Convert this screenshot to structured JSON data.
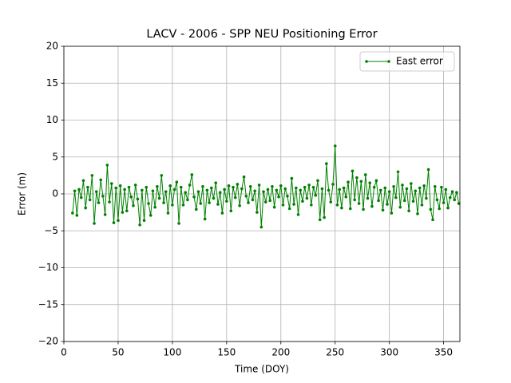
{
  "chart_data": {
    "type": "line",
    "title": "LACV - 2006 - SPP NEU Positioning Error",
    "xlabel": "Time (DOY)",
    "ylabel": "Error (m)",
    "xlim": [
      0,
      365
    ],
    "ylim": [
      -20,
      20
    ],
    "xticks": [
      0,
      50,
      100,
      150,
      200,
      250,
      300,
      350
    ],
    "yticks": [
      {
        "value": -20,
        "label": "−20"
      },
      {
        "value": -15,
        "label": "−15"
      },
      {
        "value": -10,
        "label": "−10"
      },
      {
        "value": -5,
        "label": "−5"
      },
      0,
      5,
      10,
      15,
      20
    ],
    "grid": true,
    "legend": "upper right",
    "x": [
      8,
      10,
      12,
      14,
      16,
      18,
      20,
      22,
      24,
      26,
      28,
      30,
      32,
      34,
      36,
      38,
      40,
      42,
      44,
      46,
      48,
      50,
      52,
      54,
      56,
      58,
      60,
      62,
      64,
      66,
      68,
      70,
      72,
      74,
      76,
      78,
      80,
      82,
      84,
      86,
      88,
      90,
      92,
      94,
      96,
      98,
      100,
      102,
      104,
      106,
      108,
      110,
      112,
      114,
      116,
      118,
      120,
      122,
      124,
      126,
      128,
      130,
      132,
      134,
      136,
      138,
      140,
      142,
      144,
      146,
      148,
      150,
      152,
      154,
      156,
      158,
      160,
      162,
      164,
      166,
      168,
      170,
      172,
      174,
      176,
      178,
      180,
      182,
      184,
      186,
      188,
      190,
      192,
      194,
      196,
      198,
      200,
      202,
      204,
      206,
      208,
      210,
      212,
      214,
      216,
      218,
      220,
      222,
      224,
      226,
      228,
      230,
      232,
      234,
      236,
      238,
      240,
      242,
      244,
      246,
      248,
      250,
      252,
      254,
      256,
      258,
      260,
      262,
      264,
      266,
      268,
      270,
      272,
      274,
      276,
      278,
      280,
      282,
      284,
      286,
      288,
      290,
      292,
      294,
      296,
      298,
      300,
      302,
      304,
      306,
      308,
      310,
      312,
      314,
      316,
      318,
      320,
      322,
      324,
      326,
      328,
      330,
      332,
      334,
      336,
      338,
      340,
      342,
      344,
      346,
      348,
      350,
      352,
      354,
      356,
      358,
      360,
      362,
      364
    ],
    "series": [
      {
        "name": "East error",
        "color": "#008000",
        "values": [
          -2.6,
          0.4,
          -2.9,
          0.6,
          -0.5,
          1.8,
          -1.9,
          0.9,
          -0.8,
          2.5,
          -4.0,
          0.3,
          -1.2,
          1.9,
          -0.3,
          -2.8,
          3.9,
          -1.1,
          1.4,
          -3.9,
          0.8,
          -3.6,
          1.1,
          -2.5,
          0.6,
          -2.3,
          0.9,
          -0.4,
          -1.6,
          1.2,
          -0.7,
          -4.2,
          0.5,
          -3.6,
          0.9,
          -1.3,
          -2.9,
          0.4,
          -1.8,
          1.0,
          -0.6,
          2.5,
          -1.2,
          0.3,
          -2.6,
          1.1,
          -1.5,
          0.6,
          1.6,
          -4.0,
          0.9,
          -1.5,
          0.2,
          -0.8,
          1.2,
          2.6,
          -0.4,
          -2.1,
          0.3,
          -1.3,
          1.0,
          -3.4,
          0.5,
          -1.2,
          0.8,
          -0.6,
          1.5,
          -1.4,
          0.2,
          -2.6,
          0.6,
          -1.0,
          1.1,
          -2.3,
          0.9,
          -0.5,
          1.3,
          -1.6,
          0.7,
          2.3,
          -0.3,
          -1.2,
          1.0,
          -0.8,
          0.4,
          -2.5,
          1.2,
          -4.5,
          0.3,
          -1.1,
          0.6,
          -0.9,
          1.0,
          -1.8,
          0.5,
          -0.4,
          1.1,
          -1.5,
          0.7,
          -0.3,
          -2.0,
          2.1,
          -1.4,
          0.8,
          -2.8,
          0.5,
          -1.0,
          0.9,
          -0.6,
          1.2,
          -1.5,
          0.9,
          -0.2,
          1.8,
          -3.5,
          0.7,
          -3.2,
          4.1,
          0.5,
          -1.1,
          1.3,
          6.5,
          -1.5,
          0.6,
          -1.9,
          0.8,
          -0.4,
          1.6,
          -2.0,
          3.1,
          -0.8,
          2.2,
          -1.3,
          1.7,
          -2.1,
          2.6,
          -0.6,
          1.5,
          -1.7,
          0.9,
          1.8,
          -0.9,
          0.5,
          -2.2,
          0.8,
          -1.4,
          0.3,
          -2.6,
          1.0,
          -0.5,
          3.0,
          -1.8,
          1.2,
          -0.9,
          0.7,
          -2.3,
          1.4,
          -1.0,
          0.4,
          -2.7,
          0.8,
          -1.5,
          1.1,
          -0.6,
          3.3,
          -2.1,
          -3.5,
          1.0,
          -0.8,
          -2.0,
          0.9,
          -1.2,
          0.6,
          -1.9,
          -0.5,
          0.3,
          -0.8,
          0.2,
          -1.3
        ]
      }
    ]
  }
}
